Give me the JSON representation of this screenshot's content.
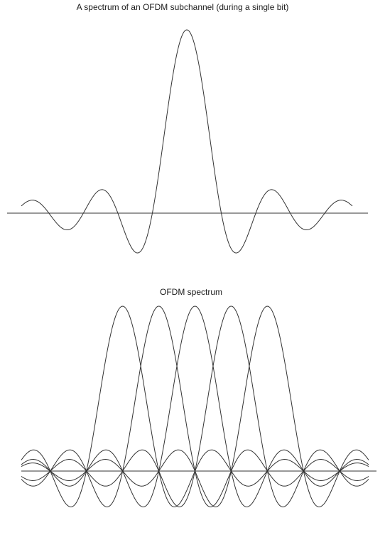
{
  "chart_data": [
    {
      "type": "line",
      "title": "A spectrum of an OFDM subchannel (during a single bit)",
      "function": "sinc",
      "x_range": [
        -4.8,
        4.8
      ],
      "ylim": [
        -0.22,
        1.0
      ],
      "series": [
        {
          "center": 0,
          "amplitude": 1.0
        }
      ],
      "axis_line": true,
      "grid": false
    },
    {
      "type": "line",
      "title": "OFDM spectrum",
      "function": "sinc",
      "x_range": [
        -4.8,
        4.8
      ],
      "ylim": [
        -0.22,
        1.0
      ],
      "series": [
        {
          "center": -2,
          "amplitude": 1.0
        },
        {
          "center": -1,
          "amplitude": 1.0
        },
        {
          "center": 0,
          "amplitude": 1.0
        },
        {
          "center": 1,
          "amplitude": 1.0
        },
        {
          "center": 2,
          "amplitude": 1.0
        }
      ],
      "axis_line": true,
      "grid": false
    }
  ]
}
